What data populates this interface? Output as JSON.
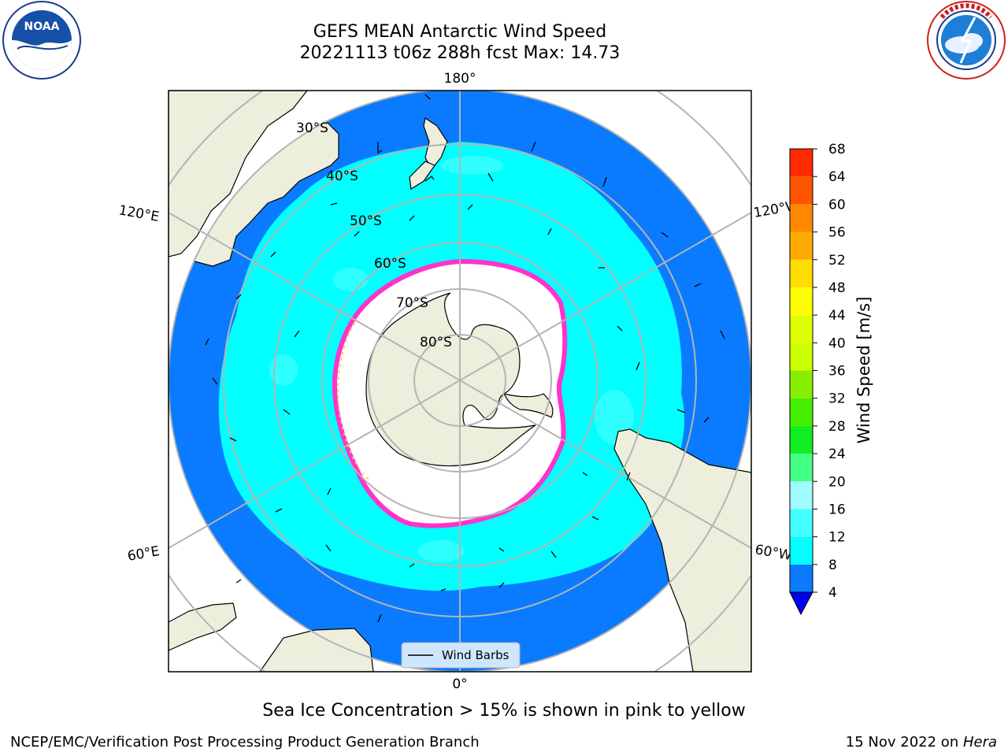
{
  "header": {
    "title_line1": "GEFS MEAN Antarctic Wind Speed",
    "title_line2": "20221113 t06z 288h fcst   Max: 14.73"
  },
  "logos": {
    "left": {
      "icon": "noaa-logo",
      "text": "NOAA"
    },
    "right": {
      "icon": "national-weather-service-logo"
    }
  },
  "map": {
    "projection": "south-polar-stereographic",
    "meridian_labels": {
      "top": "180°",
      "bottom": "0°",
      "upper_left": "120°E",
      "upper_right": "120°W",
      "lower_left": "60°E",
      "lower_right": "60°W"
    },
    "latitude_labels": [
      "30°S",
      "40°S",
      "50°S",
      "60°S",
      "70°S",
      "80°S"
    ],
    "colors": {
      "ocean_dark": "#0a7bff",
      "ocean_light": "#00ffff",
      "ice_edge": "#ff33cc",
      "land": "#eeeedd",
      "ice_shelf": "#ffffff",
      "grid": "#b4b4b4"
    },
    "legend": {
      "label": "Wind Barbs"
    }
  },
  "colorbar": {
    "label": "Wind Speed [m/s]",
    "ticks": [
      "4",
      "8",
      "12",
      "16",
      "20",
      "24",
      "28",
      "32",
      "36",
      "40",
      "44",
      "48",
      "52",
      "56",
      "60",
      "64",
      "68"
    ],
    "colors": [
      "#0a7bff",
      "#00ffff",
      "#44ffff",
      "#9ffdff",
      "#44ff88",
      "#11ee22",
      "#44ee00",
      "#88ee00",
      "#ccff00",
      "#ddff00",
      "#ffff00",
      "#ffdd00",
      "#ffaa00",
      "#ff8800",
      "#ff5500",
      "#ff2a00"
    ],
    "extend_min_color": "#0000ee"
  },
  "footer": {
    "note": "Sea Ice Concentration > 15% is shown in pink to yellow",
    "credit_left": "NCEP/EMC/Verification Post Processing Product Generation Branch",
    "credit_date": "15 Nov 2022 on ",
    "credit_host": "Hera"
  }
}
